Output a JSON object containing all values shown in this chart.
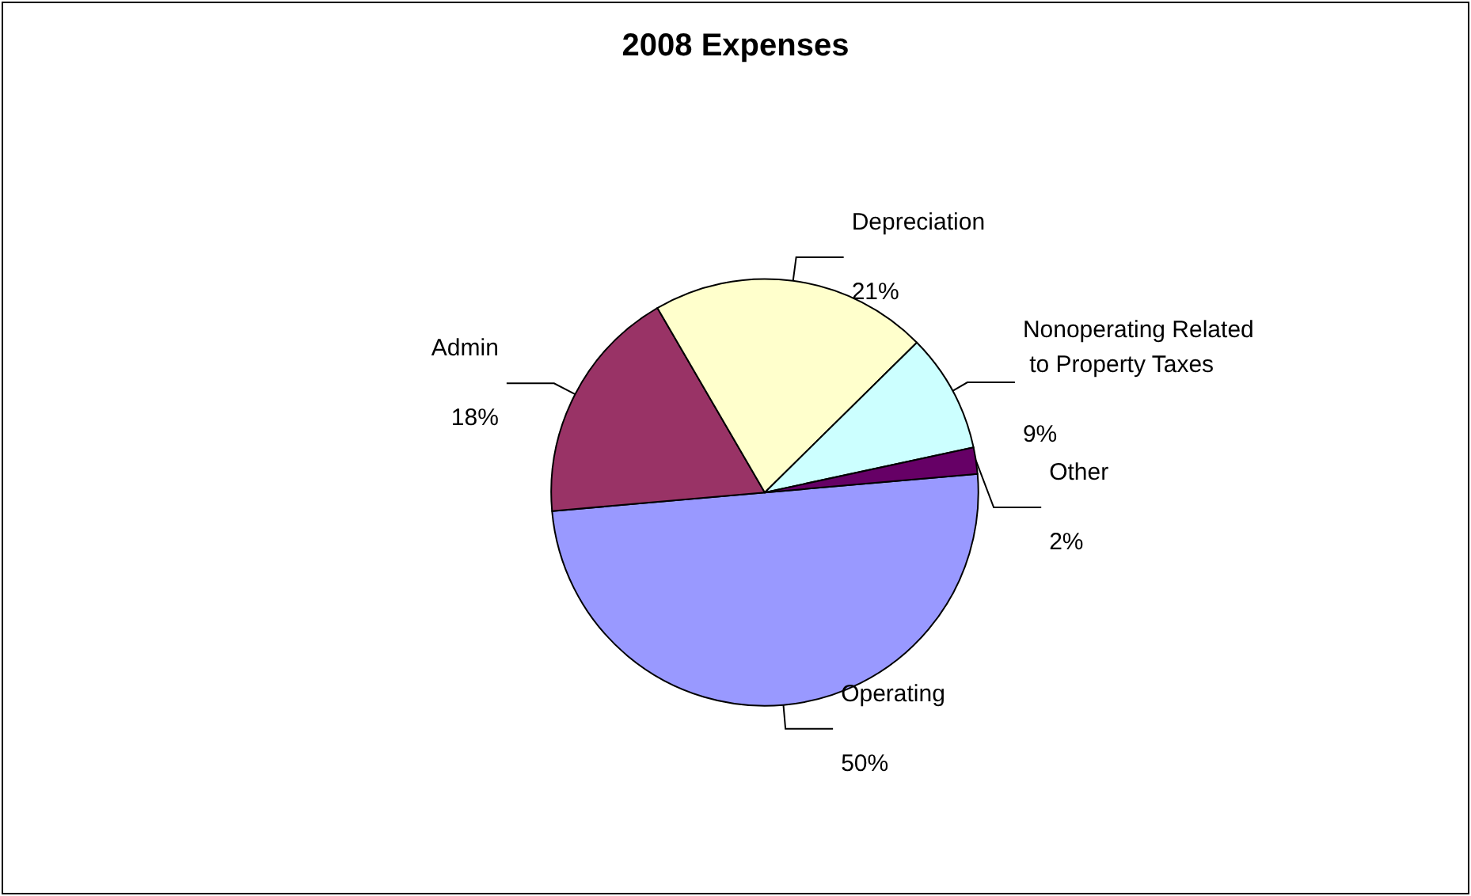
{
  "chart_data": {
    "type": "pie",
    "title": "2008 Expenses",
    "categories": [
      "Operating",
      "Admin",
      "Depreciation",
      "Nonoperating Related to Property Taxes",
      "Other"
    ],
    "values": [
      50,
      18,
      21,
      9,
      2
    ],
    "value_labels": [
      "50%",
      "18%",
      "21%",
      "9%",
      "2%"
    ],
    "colors": [
      "#9999ff",
      "#993366",
      "#ffffcc",
      "#ccffff",
      "#660066"
    ],
    "legend": false
  }
}
